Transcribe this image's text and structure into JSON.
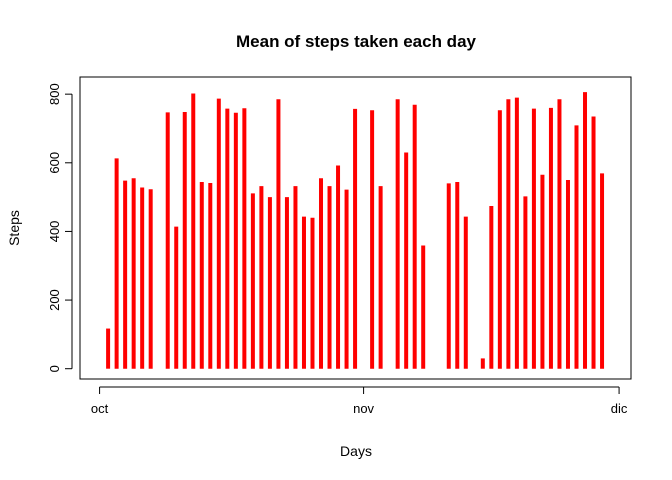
{
  "chart_data": {
    "type": "bar",
    "title": "Mean of steps taken each day",
    "xlabel": "Days",
    "ylabel": "Steps",
    "x_ticks": [
      {
        "label": "oct",
        "day": 0
      },
      {
        "label": "nov",
        "day": 31
      },
      {
        "label": "dic",
        "day": 61
      }
    ],
    "y_ticks": [
      0,
      200,
      400,
      600,
      800
    ],
    "xlim": [
      -2.3,
      62.4
    ],
    "ylim": [
      -30,
      850
    ],
    "bar_color": "#ff0000",
    "series": [
      {
        "values": [
          0,
          117,
          613,
          548,
          555,
          528,
          523,
          0,
          747,
          414,
          748,
          802,
          544,
          541,
          787,
          758,
          746,
          759,
          511,
          532,
          500,
          785,
          500,
          532,
          443,
          440,
          555,
          532,
          592,
          522,
          757,
          0,
          753,
          532,
          0,
          785,
          630,
          769,
          359,
          0,
          0,
          540,
          544,
          443,
          0,
          30,
          474,
          753,
          785,
          790,
          502,
          758,
          565,
          760,
          785,
          550,
          709,
          806,
          735,
          569,
          0
        ]
      }
    ]
  }
}
